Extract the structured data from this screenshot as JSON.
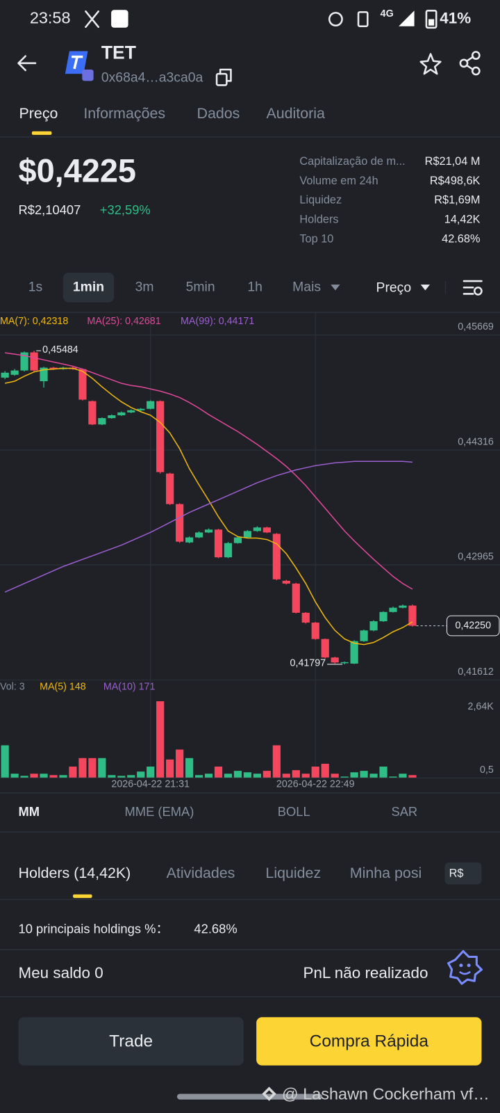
{
  "status_bar": {
    "time": "23:58",
    "network": "4G",
    "battery": "41%"
  },
  "header": {
    "symbol": "TET",
    "address": "0x68a4…a3ca0a"
  },
  "tabs": [
    "Preço",
    "Informações",
    "Dados",
    "Auditoria"
  ],
  "price": {
    "usd": "$0,4225",
    "fiat": "R$2,10407",
    "change": "+32,59%"
  },
  "stats": [
    [
      "Capitalização de m...",
      "R$21,04 M"
    ],
    [
      "Volume em 24h",
      "R$498,6K"
    ],
    [
      "Liquidez",
      "R$1,69M"
    ],
    [
      "Holders",
      "14,42K"
    ],
    [
      "Top 10",
      "42.68%"
    ]
  ],
  "intervals": [
    "1s",
    "1min",
    "3m",
    "5min",
    "1h",
    "Mais"
  ],
  "chart_mode": "Preço",
  "chart_data": [
    {
      "type": "candlestick",
      "categories": [
        null,
        null,
        null,
        null,
        null,
        null,
        null,
        null,
        null,
        null,
        null,
        null,
        null,
        null,
        null,
        "2026-04-22 21:31",
        null,
        null,
        null,
        null,
        null,
        null,
        null,
        null,
        null,
        null,
        null,
        null,
        null,
        null,
        null,
        null,
        "2026-04-22 22:49",
        null,
        null,
        null,
        null,
        null,
        null,
        null,
        null,
        null,
        null
      ],
      "open": [
        0.45168,
        0.45201,
        0.45252,
        0.45465,
        0.45126,
        0.45285,
        0.45268,
        0.45285,
        0.45268,
        0.44892,
        0.44617,
        0.44692,
        0.44725,
        0.44759,
        0.44784,
        0.44801,
        0.44892,
        0.4404,
        0.43681,
        0.4323,
        0.43289,
        0.43347,
        0.43381,
        0.43055,
        0.43222,
        0.43289,
        0.43364,
        0.43406,
        0.43331,
        0.42779,
        0.42746,
        0.42403,
        0.42287,
        0.42094,
        0.41877,
        0.41818,
        0.41805,
        0.42069,
        0.42195,
        0.42303,
        0.42412,
        0.42462,
        0.42487
      ],
      "high": [
        0.45245,
        0.4527,
        0.45475,
        0.45484,
        0.45295,
        0.45295,
        0.45295,
        0.45295,
        0.45275,
        0.449,
        0.447,
        0.44735,
        0.4477,
        0.44795,
        0.4481,
        0.449,
        0.449,
        0.4405,
        0.4369,
        0.433,
        0.4336,
        0.43395,
        0.4339,
        0.43235,
        0.433,
        0.43375,
        0.4342,
        0.43415,
        0.4334,
        0.4279,
        0.42755,
        0.4241,
        0.42295,
        0.421,
        0.41885,
        0.4183,
        0.4208,
        0.42205,
        0.42315,
        0.4242,
        0.42475,
        0.425,
        0.425
      ],
      "low": [
        0.4515,
        0.4519,
        0.4524,
        0.4524,
        0.45051,
        0.4526,
        0.4526,
        0.4526,
        0.449,
        0.4461,
        0.4461,
        0.44685,
        0.44718,
        0.4475,
        0.44775,
        0.44795,
        0.4404,
        0.4367,
        0.43225,
        0.4322,
        0.4328,
        0.4334,
        0.43045,
        0.43045,
        0.43215,
        0.4328,
        0.43355,
        0.4334,
        0.42785,
        0.42735,
        0.42395,
        0.42275,
        0.42085,
        0.41865,
        0.41805,
        0.41797,
        0.418,
        0.4206,
        0.42185,
        0.42295,
        0.42405,
        0.42455,
        0.4224
      ],
      "close": [
        0.45226,
        0.45252,
        0.45465,
        0.45252,
        0.45285,
        0.45268,
        0.45285,
        0.45268,
        0.44909,
        0.44617,
        0.44692,
        0.44725,
        0.44759,
        0.44784,
        0.44801,
        0.44892,
        0.44057,
        0.43681,
        0.43239,
        0.43289,
        0.43347,
        0.43381,
        0.43055,
        0.43222,
        0.43289,
        0.43364,
        0.43406,
        0.43347,
        0.42796,
        0.42746,
        0.42403,
        0.42287,
        0.42094,
        0.41877,
        0.41818,
        0.41822,
        0.42069,
        0.42195,
        0.42303,
        0.42412,
        0.42462,
        0.42487,
        0.4225
      ],
      "up_color": "#2ebd85",
      "down_color": "#f6465d",
      "series": [
        {
          "name": "MA(7): 0,42318",
          "color": "#f0b90b",
          "values": [
            0.45101,
            0.45126,
            0.45185,
            0.45235,
            0.4526,
            0.45268,
            0.45277,
            0.45277,
            0.45243,
            0.4516,
            0.4506,
            0.44968,
            0.44884,
            0.44817,
            0.44767,
            0.44726,
            0.44642,
            0.44517,
            0.44333,
            0.44099,
            0.43907,
            0.43724,
            0.43532,
            0.43365,
            0.43298,
            0.43281,
            0.43281,
            0.43264,
            0.43214,
            0.43097,
            0.4293,
            0.42747,
            0.4253,
            0.42346,
            0.42196,
            0.42095,
            0.42045,
            0.42029,
            0.42054,
            0.42112,
            0.42179,
            0.42229,
            0.42296
          ]
        },
        {
          "name": "MA(25): 0,42681",
          "color": "#e0489a",
          "values": [
            0.4546,
            0.45444,
            0.45427,
            0.45402,
            0.45377,
            0.45352,
            0.45327,
            0.45302,
            0.45268,
            0.45227,
            0.45185,
            0.45143,
            0.45101,
            0.45076,
            0.4506,
            0.45035,
            0.45009,
            0.44976,
            0.44934,
            0.44876,
            0.44809,
            0.44734,
            0.44667,
            0.446,
            0.44534,
            0.44458,
            0.44383,
            0.443,
            0.44216,
            0.44124,
            0.44016,
            0.43899,
            0.43765,
            0.43632,
            0.43498,
            0.43365,
            0.43248,
            0.43139,
            0.43031,
            0.4293,
            0.4283,
            0.42747,
            0.4268
          ]
        },
        {
          "name": "MA(99): 0,44171",
          "color": "#9b5fd0",
          "values": [
            0.42646,
            0.42697,
            0.42747,
            0.42797,
            0.42847,
            0.42897,
            0.42947,
            0.42989,
            0.43031,
            0.43072,
            0.43114,
            0.43156,
            0.43198,
            0.43248,
            0.43298,
            0.43348,
            0.43406,
            0.43465,
            0.43523,
            0.43582,
            0.43632,
            0.43682,
            0.43732,
            0.43782,
            0.43832,
            0.43882,
            0.43932,
            0.43974,
            0.44016,
            0.44049,
            0.44083,
            0.44108,
            0.44133,
            0.44149,
            0.44166,
            0.44174,
            0.44183,
            0.44183,
            0.44183,
            0.44183,
            0.44183,
            0.44183,
            0.44174
          ]
        }
      ],
      "ylim": [
        0.41612,
        0.45936
      ],
      "yticks": [
        {
          "value": 0.45669,
          "label": "0,45669"
        },
        {
          "value": 0.44316,
          "label": "0,44316"
        },
        {
          "value": 0.42965,
          "label": "0,42965"
        },
        {
          "value": 0.41612,
          "label": "0,41612"
        }
      ],
      "grid": true,
      "annotations": {
        "high": {
          "value": 0.45484,
          "label": "0,45484"
        },
        "low": {
          "value": 0.41797,
          "label": "0,41797"
        },
        "last": {
          "value": 0.4225,
          "label": "0,42250"
        }
      }
    },
    {
      "type": "bar",
      "values": [
        1364,
        178,
        89,
        178,
        178,
        119,
        119,
        475,
        830,
        830,
        830,
        119,
        89,
        119,
        267,
        475,
        3203,
        771,
        1186,
        830,
        119,
        178,
        475,
        178,
        297,
        237,
        178,
        297,
        1364,
        178,
        326,
        178,
        475,
        593,
        178,
        59,
        237,
        297,
        178,
        475,
        59,
        178,
        119
      ],
      "legend": [
        "Vol: 3",
        "MA(5) 148",
        "MA(10) 171"
      ],
      "ylim": [
        0,
        4090
      ],
      "yticks": [
        {
          "value": 0.5,
          "label": "0,5"
        },
        {
          "value": 2640,
          "label": "2,64K"
        }
      ]
    }
  ],
  "indicators": [
    "MM",
    "MME (EMA)",
    "BOLL",
    "SAR"
  ],
  "holder_tabs": [
    "Holders (14,42K)",
    "Atividades",
    "Liquidez",
    "Minha posi"
  ],
  "currency": "R$",
  "top10": {
    "label": "10 principais holdings %：",
    "value": "42.68%"
  },
  "balance": {
    "label": "Meu saldo 0",
    "pnl": "PnL não realizado"
  },
  "buttons": [
    "Trade",
    "Compra Rápida"
  ],
  "watermark": "@ Lashawn Cockerham vf…"
}
